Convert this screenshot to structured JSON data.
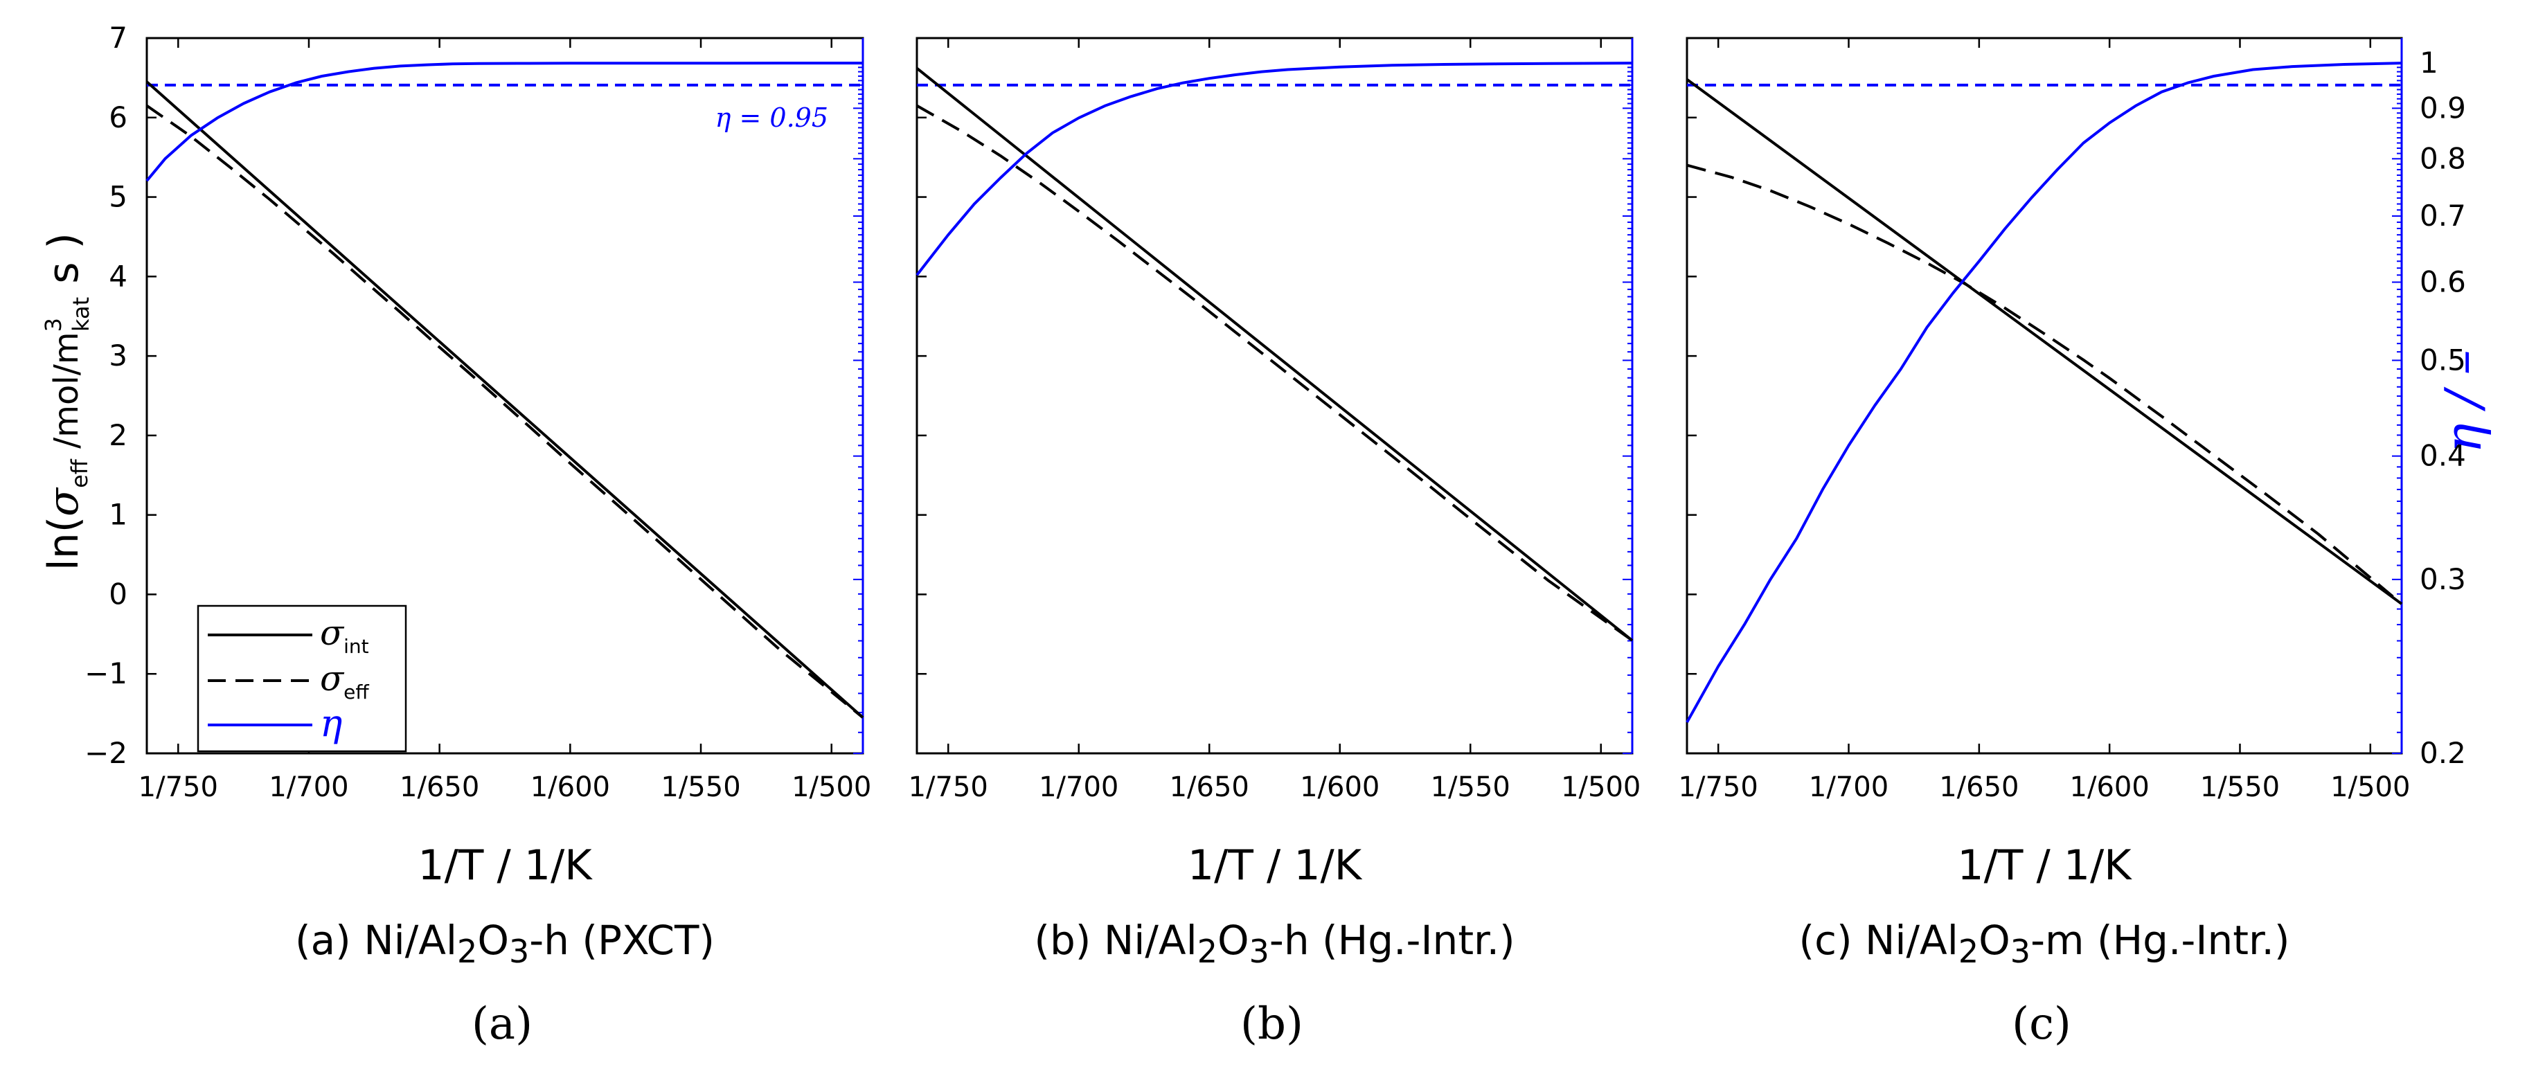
{
  "figure": {
    "shared_ylabel": {
      "prefix": "ln(",
      "sigma": "σ",
      "sigma_sub": "eff",
      "unit": " /mol/m",
      "unit_sup": "3",
      "unit_sub": "kat",
      "tail": " s )"
    },
    "right_ylabel": "η / –",
    "legend": [
      {
        "symbol": "σ",
        "sub": "int",
        "style": "solid",
        "color": "#000000"
      },
      {
        "symbol": "σ",
        "sub": "eff",
        "style": "dashed",
        "color": "#000000"
      },
      {
        "symbol": "η",
        "sub": "",
        "style": "solid",
        "color": "#0000ff"
      }
    ],
    "colors": {
      "axis": "#000000",
      "eta": "#0000ff",
      "sigma": "#000000"
    }
  },
  "chart_data": [
    {
      "type": "line",
      "panel_letter": "(a)",
      "xlabel": "1/T / 1/K",
      "title": {
        "prefix": "(a) Ni/Al",
        "sub1": "2",
        "mid": "O",
        "sub2": "3",
        "suffix": "-h (PXCT)"
      },
      "xlim": [
        762,
        488
      ],
      "x_ticks": [
        750,
        700,
        650,
        600,
        550,
        500
      ],
      "x_tick_labels": [
        "1/750",
        "1/700",
        "1/650",
        "1/600",
        "1/550",
        "1/500"
      ],
      "ylim": [
        -2,
        7
      ],
      "y_ticks": [
        -2,
        -1,
        0,
        1,
        2,
        3,
        4,
        5,
        6,
        7
      ],
      "y_tick_labels": [
        "−2",
        "−1",
        "0",
        "1",
        "2",
        "3",
        "4",
        "5",
        "6",
        "7"
      ],
      "eta_axis": {
        "scale": "log",
        "lim": [
          0.2,
          1.06
        ]
      },
      "threshold": {
        "value": 0.95,
        "label": "η = 0.95"
      },
      "series": [
        {
          "name": "σint",
          "style": "solid",
          "color": "#000000",
          "x": [
            762,
            488
          ],
          "y": [
            6.45,
            -1.55
          ]
        },
        {
          "name": "σeff",
          "style": "dashed",
          "color": "#000000",
          "x": [
            762,
            745,
            730,
            715,
            700,
            690,
            680,
            665,
            650,
            635,
            620,
            600,
            580,
            550,
            520,
            488
          ],
          "y": [
            6.15,
            5.76,
            5.37,
            4.97,
            4.55,
            4.27,
            3.98,
            3.55,
            3.11,
            2.68,
            2.24,
            1.65,
            1.07,
            0.19,
            -0.69,
            -1.55
          ]
        },
        {
          "name": "η",
          "style": "solid",
          "color": "#0000ff",
          "axis": "eta",
          "x": [
            762,
            755,
            745,
            735,
            725,
            715,
            705,
            695,
            685,
            675,
            665,
            655,
            645,
            635,
            620,
            600,
            580,
            560,
            540,
            520,
            488
          ],
          "y": [
            0.76,
            0.8,
            0.845,
            0.88,
            0.91,
            0.935,
            0.955,
            0.97,
            0.98,
            0.988,
            0.993,
            0.996,
            0.998,
            0.9988,
            0.9993,
            0.9996,
            0.9998,
            0.9999,
            0.9999,
            1.0,
            1.0
          ]
        }
      ]
    },
    {
      "type": "line",
      "panel_letter": "(b)",
      "xlabel": "1/T / 1/K",
      "title": {
        "prefix": "(b) Ni/Al",
        "sub1": "2",
        "mid": "O",
        "sub2": "3",
        "suffix": "-h (Hg.-Intr.)"
      },
      "xlim": [
        762,
        488
      ],
      "x_ticks": [
        750,
        700,
        650,
        600,
        550,
        500
      ],
      "x_tick_labels": [
        "1/750",
        "1/700",
        "1/650",
        "1/600",
        "1/550",
        "1/500"
      ],
      "ylim": [
        -2,
        7
      ],
      "eta_axis": {
        "scale": "log",
        "lim": [
          0.2,
          1.06
        ]
      },
      "threshold": {
        "value": 0.95,
        "label": ""
      },
      "series": [
        {
          "name": "σint",
          "style": "solid",
          "color": "#000000",
          "x": [
            762,
            488
          ],
          "y": [
            6.62,
            -0.58
          ]
        },
        {
          "name": "σeff",
          "style": "dashed",
          "color": "#000000",
          "x": [
            762,
            745,
            730,
            715,
            700,
            685,
            670,
            655,
            640,
            620,
            600,
            580,
            550,
            520,
            488
          ],
          "y": [
            6.15,
            5.83,
            5.52,
            5.18,
            4.82,
            4.45,
            4.07,
            3.69,
            3.3,
            2.78,
            2.26,
            1.74,
            0.95,
            0.17,
            -0.58
          ]
        },
        {
          "name": "η",
          "style": "solid",
          "color": "#0000ff",
          "axis": "eta",
          "x": [
            762,
            750,
            740,
            730,
            720,
            710,
            700,
            690,
            680,
            670,
            660,
            650,
            640,
            630,
            620,
            600,
            580,
            560,
            540,
            520,
            488
          ],
          "y": [
            0.61,
            0.67,
            0.72,
            0.765,
            0.81,
            0.85,
            0.88,
            0.905,
            0.925,
            0.942,
            0.955,
            0.965,
            0.973,
            0.98,
            0.985,
            0.991,
            0.995,
            0.997,
            0.998,
            0.999,
            1.0
          ]
        }
      ]
    },
    {
      "type": "line",
      "panel_letter": "(c)",
      "xlabel": "1/T / 1/K",
      "title": {
        "prefix": "(c) Ni/Al",
        "sub1": "2",
        "mid": "O",
        "sub2": "3",
        "suffix": "-m (Hg.-Intr.)"
      },
      "xlim": [
        762,
        488
      ],
      "x_ticks": [
        750,
        700,
        650,
        600,
        550,
        500
      ],
      "x_tick_labels": [
        "1/750",
        "1/700",
        "1/650",
        "1/600",
        "1/550",
        "1/500"
      ],
      "ylim": [
        -2,
        7
      ],
      "eta_axis": {
        "scale": "log",
        "lim": [
          0.2,
          1.06
        ],
        "ticks": [
          0.2,
          0.3,
          0.4,
          0.5,
          0.6,
          0.7,
          0.8,
          0.9,
          1
        ],
        "tick_labels": [
          "0.2",
          "0.3",
          "0.4",
          "0.5",
          "0.6",
          "0.7",
          "0.8",
          "0.9",
          "1"
        ]
      },
      "threshold": {
        "value": 0.95,
        "label": ""
      },
      "series": [
        {
          "name": "σint",
          "style": "solid",
          "color": "#000000",
          "x": [
            762,
            488
          ],
          "y": [
            6.48,
            -0.12
          ]
        },
        {
          "name": "σeff",
          "style": "dashed",
          "color": "#000000",
          "x": [
            762,
            745,
            730,
            715,
            700,
            685,
            670,
            655,
            640,
            625,
            610,
            600,
            580,
            560,
            540,
            520,
            488
          ],
          "y": [
            5.4,
            5.25,
            5.08,
            4.88,
            4.66,
            4.42,
            4.17,
            3.9,
            3.6,
            3.28,
            2.95,
            2.72,
            2.24,
            1.75,
            1.26,
            0.76,
            -0.12
          ]
        },
        {
          "name": "η",
          "style": "solid",
          "color": "#0000ff",
          "axis": "eta",
          "x": [
            762,
            750,
            740,
            730,
            720,
            710,
            700,
            690,
            680,
            670,
            660,
            650,
            640,
            630,
            620,
            610,
            600,
            590,
            580,
            570,
            560,
            545,
            530,
            510,
            488
          ],
          "y": [
            0.215,
            0.245,
            0.27,
            0.3,
            0.33,
            0.37,
            0.41,
            0.45,
            0.49,
            0.54,
            0.585,
            0.63,
            0.68,
            0.73,
            0.78,
            0.83,
            0.87,
            0.905,
            0.935,
            0.955,
            0.97,
            0.985,
            0.992,
            0.997,
            1.0
          ]
        }
      ]
    }
  ]
}
